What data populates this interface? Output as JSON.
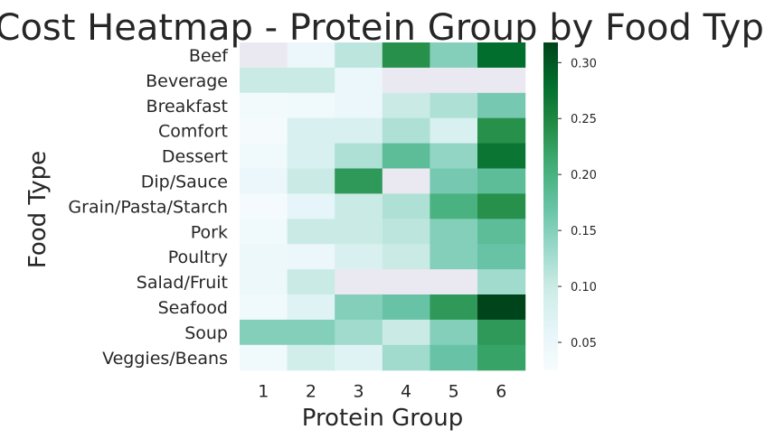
{
  "chart_data": {
    "type": "heatmap",
    "title": "Cost Heatmap - Protein Group by Food Type",
    "xlabel": "Protein Group",
    "ylabel": "Food Type",
    "x_categories": [
      "1",
      "2",
      "3",
      "4",
      "5",
      "6"
    ],
    "y_categories": [
      "Beef",
      "Beverage",
      "Breakfast",
      "Comfort",
      "Dessert",
      "Dip/Sauce",
      "Grain/Pasta/Starch",
      "Pork",
      "Poultry",
      "Salad/Fruit",
      "Seafood",
      "Soup",
      "Veggies/Beans"
    ],
    "values": [
      [
        null,
        0.05,
        0.11,
        0.24,
        0.15,
        0.28
      ],
      [
        0.1,
        0.1,
        0.05,
        null,
        null,
        null
      ],
      [
        0.035,
        0.04,
        0.05,
        0.1,
        0.12,
        0.16
      ],
      [
        0.03,
        0.08,
        0.08,
        0.12,
        0.08,
        0.24
      ],
      [
        0.04,
        0.08,
        0.12,
        0.18,
        0.14,
        0.27
      ],
      [
        0.05,
        0.1,
        0.23,
        null,
        0.16,
        0.18
      ],
      [
        0.03,
        0.06,
        0.1,
        0.12,
        0.2,
        0.24
      ],
      [
        0.04,
        0.1,
        0.1,
        0.11,
        0.15,
        0.18
      ],
      [
        0.045,
        0.05,
        0.08,
        0.1,
        0.15,
        0.17
      ],
      [
        0.045,
        0.1,
        null,
        null,
        null,
        0.13
      ],
      [
        0.04,
        0.07,
        0.15,
        0.17,
        0.23,
        0.32
      ],
      [
        0.15,
        0.15,
        0.13,
        0.1,
        0.15,
        0.23
      ],
      [
        0.04,
        0.09,
        0.07,
        0.13,
        0.17,
        0.22
      ]
    ],
    "missing_color": "#eae9f2",
    "colormap": "BuGn",
    "colorbar": {
      "min": 0.025,
      "max": 0.318,
      "ticks": [
        "0.05",
        "0.10",
        "0.15",
        "0.20",
        "0.25",
        "0.30"
      ]
    },
    "grid": false,
    "legend": "colorbar-right"
  }
}
